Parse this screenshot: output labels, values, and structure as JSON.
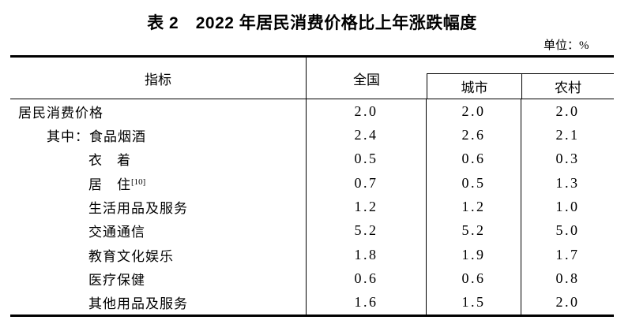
{
  "title": "表 2　2022 年居民消费价格比上年涨跌幅度",
  "unit_label": "单位：%",
  "table": {
    "columns": {
      "indicator": "指标",
      "national": "全国",
      "urban": "城市",
      "rural": "农村"
    },
    "rows": [
      {
        "label": "居民消费价格",
        "indent": 0,
        "sup": "",
        "national": "2.0",
        "urban": "2.0",
        "rural": "2.0"
      },
      {
        "label": "其中：食品烟酒",
        "indent": 1,
        "sup": "",
        "national": "2.4",
        "urban": "2.6",
        "rural": "2.1"
      },
      {
        "label": "衣　着",
        "indent": 2,
        "sup": "",
        "national": "0.5",
        "urban": "0.6",
        "rural": "0.3"
      },
      {
        "label": "居　住",
        "indent": 2,
        "sup": "[10]",
        "national": "0.7",
        "urban": "0.5",
        "rural": "1.3"
      },
      {
        "label": "生活用品及服务",
        "indent": 2,
        "sup": "",
        "national": "1.2",
        "urban": "1.2",
        "rural": "1.0"
      },
      {
        "label": "交通通信",
        "indent": 2,
        "sup": "",
        "national": "5.2",
        "urban": "5.2",
        "rural": "5.0"
      },
      {
        "label": "教育文化娱乐",
        "indent": 2,
        "sup": "",
        "national": "1.8",
        "urban": "1.9",
        "rural": "1.7"
      },
      {
        "label": "医疗保健",
        "indent": 2,
        "sup": "",
        "national": "0.6",
        "urban": "0.6",
        "rural": "0.8"
      },
      {
        "label": "其他用品及服务",
        "indent": 2,
        "sup": "",
        "national": "1.6",
        "urban": "1.5",
        "rural": "2.0"
      }
    ]
  }
}
